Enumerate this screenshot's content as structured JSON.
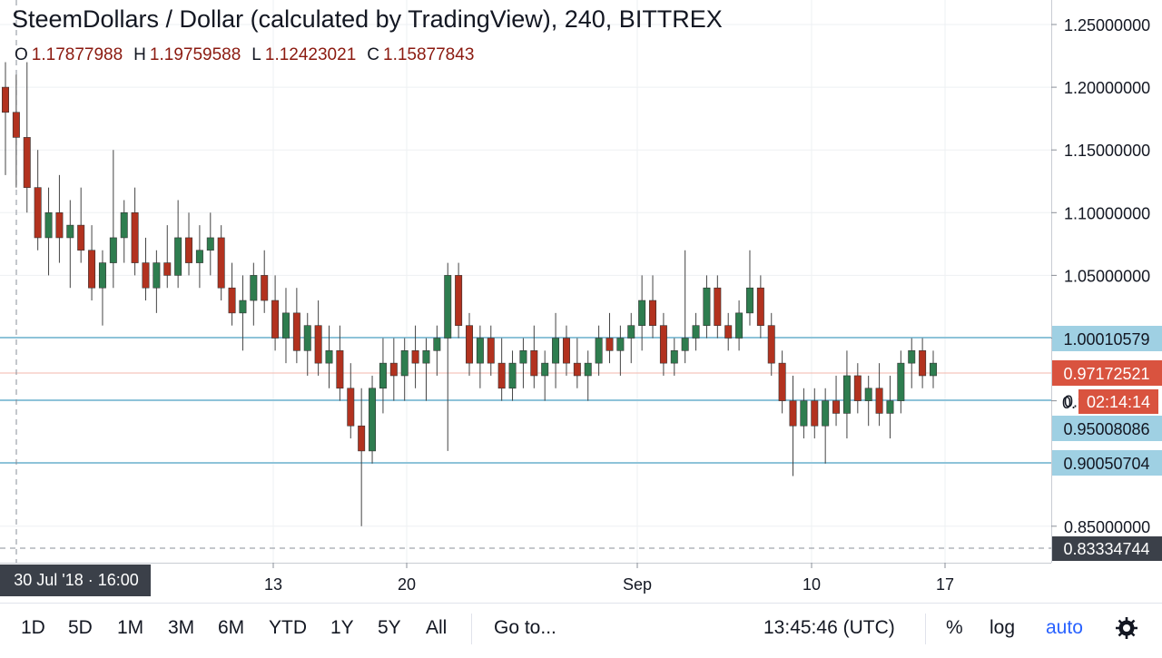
{
  "header": {
    "title": "SteemDollars / Dollar (calculated by TradingView), 240, BITTREX",
    "ohlc": {
      "o_label": "O",
      "o": "1.17877988",
      "h_label": "H",
      "h": "1.19759588",
      "l_label": "L",
      "l": "1.12423021",
      "c_label": "C",
      "c": "1.15877843"
    }
  },
  "colors": {
    "up": "#2e7d4f",
    "down": "#b2321f",
    "wick": "#444444",
    "hline": "#8ec3d9",
    "label_blue": "#9fd0e3",
    "label_red": "#d9533f",
    "label_dark": "#3b4049",
    "grid": "#eef0f3"
  },
  "price_axis": {
    "ticks": [
      "1.25000000",
      "1.20000000",
      "1.15000000",
      "1.10000000",
      "1.05000000",
      "1.00000000",
      "0.95000000",
      "0.85000000"
    ],
    "labels": {
      "hline_1": "1.00010579",
      "last_price": "0.97172521",
      "countdown": "02:14:14",
      "countdown_prefix": "0.",
      "hline_2": "0.95008086",
      "hline_3": "0.90050704",
      "crosshair": "0.83334744"
    }
  },
  "time_axis": {
    "crosshair_label": "30 Jul '18 · 16:00",
    "ticks": [
      "13",
      "20",
      "Sep",
      "10",
      "17"
    ]
  },
  "toolbar": {
    "ranges": [
      "1D",
      "5D",
      "1M",
      "3M",
      "6M",
      "YTD",
      "1Y",
      "5Y",
      "All"
    ],
    "goto": "Go to...",
    "clock": "13:45:46 (UTC)",
    "percent": "%",
    "log": "log",
    "auto": "auto",
    "settings_icon": "gear-icon"
  },
  "chart_data": {
    "type": "candlestick",
    "title": "SteemDollars / Dollar (calculated by TradingView), 240, BITTREX",
    "interval": "240",
    "ylim": [
      0.83,
      1.27
    ],
    "x_ticks": [
      "13",
      "20",
      "Sep",
      "10",
      "17"
    ],
    "horizontal_lines": [
      1.00010579,
      0.95008086,
      0.90050704
    ],
    "last_price": 0.97172521,
    "candles": [
      [
        1.2,
        1.22,
        1.13,
        1.18
      ],
      [
        1.18,
        1.21,
        1.12,
        1.16
      ],
      [
        1.16,
        1.22,
        1.1,
        1.12
      ],
      [
        1.12,
        1.15,
        1.07,
        1.08
      ],
      [
        1.08,
        1.12,
        1.05,
        1.1
      ],
      [
        1.1,
        1.13,
        1.06,
        1.08
      ],
      [
        1.08,
        1.11,
        1.04,
        1.09
      ],
      [
        1.09,
        1.12,
        1.06,
        1.07
      ],
      [
        1.07,
        1.09,
        1.03,
        1.04
      ],
      [
        1.04,
        1.07,
        1.01,
        1.06
      ],
      [
        1.06,
        1.15,
        1.04,
        1.08
      ],
      [
        1.08,
        1.11,
        1.06,
        1.1
      ],
      [
        1.1,
        1.12,
        1.05,
        1.06
      ],
      [
        1.06,
        1.08,
        1.03,
        1.04
      ],
      [
        1.04,
        1.07,
        1.02,
        1.06
      ],
      [
        1.06,
        1.09,
        1.04,
        1.05
      ],
      [
        1.05,
        1.11,
        1.04,
        1.08
      ],
      [
        1.08,
        1.1,
        1.05,
        1.06
      ],
      [
        1.06,
        1.09,
        1.04,
        1.07
      ],
      [
        1.07,
        1.1,
        1.05,
        1.08
      ],
      [
        1.08,
        1.09,
        1.03,
        1.04
      ],
      [
        1.04,
        1.06,
        1.01,
        1.02
      ],
      [
        1.02,
        1.05,
        0.99,
        1.03
      ],
      [
        1.03,
        1.06,
        1.01,
        1.05
      ],
      [
        1.05,
        1.07,
        1.02,
        1.03
      ],
      [
        1.03,
        1.05,
        0.99,
        1.0
      ],
      [
        1.0,
        1.04,
        0.98,
        1.02
      ],
      [
        1.02,
        1.04,
        0.98,
        0.99
      ],
      [
        0.99,
        1.02,
        0.97,
        1.01
      ],
      [
        1.01,
        1.03,
        0.97,
        0.98
      ],
      [
        0.98,
        1.01,
        0.96,
        0.99
      ],
      [
        0.99,
        1.01,
        0.95,
        0.96
      ],
      [
        0.96,
        0.98,
        0.92,
        0.93
      ],
      [
        0.93,
        0.96,
        0.85,
        0.91
      ],
      [
        0.91,
        0.97,
        0.9,
        0.96
      ],
      [
        0.96,
        1.0,
        0.94,
        0.98
      ],
      [
        0.98,
        1.0,
        0.95,
        0.97
      ],
      [
        0.97,
        1.0,
        0.95,
        0.99
      ],
      [
        0.99,
        1.01,
        0.96,
        0.98
      ],
      [
        0.98,
        1.0,
        0.95,
        0.99
      ],
      [
        0.99,
        1.01,
        0.97,
        1.0
      ],
      [
        1.0,
        1.06,
        0.91,
        1.05
      ],
      [
        1.05,
        1.06,
        1.0,
        1.01
      ],
      [
        1.01,
        1.02,
        0.97,
        0.98
      ],
      [
        0.98,
        1.01,
        0.96,
        1.0
      ],
      [
        1.0,
        1.01,
        0.97,
        0.98
      ],
      [
        0.98,
        1.0,
        0.95,
        0.96
      ],
      [
        0.96,
        0.99,
        0.95,
        0.98
      ],
      [
        0.98,
        1.0,
        0.96,
        0.99
      ],
      [
        0.99,
        1.01,
        0.96,
        0.97
      ],
      [
        0.97,
        0.99,
        0.95,
        0.98
      ],
      [
        0.98,
        1.02,
        0.96,
        1.0
      ],
      [
        1.0,
        1.01,
        0.97,
        0.98
      ],
      [
        0.98,
        1.0,
        0.96,
        0.97
      ],
      [
        0.97,
        0.99,
        0.95,
        0.98
      ],
      [
        0.98,
        1.01,
        0.97,
        1.0
      ],
      [
        1.0,
        1.02,
        0.98,
        0.99
      ],
      [
        0.99,
        1.01,
        0.97,
        1.0
      ],
      [
        1.0,
        1.02,
        0.98,
        1.01
      ],
      [
        1.01,
        1.05,
        0.99,
        1.03
      ],
      [
        1.03,
        1.05,
        1.0,
        1.01
      ],
      [
        1.01,
        1.02,
        0.97,
        0.98
      ],
      [
        0.98,
        1.0,
        0.97,
        0.99
      ],
      [
        0.99,
        1.07,
        0.98,
        1.0
      ],
      [
        1.0,
        1.02,
        0.99,
        1.01
      ],
      [
        1.01,
        1.05,
        1.0,
        1.04
      ],
      [
        1.04,
        1.05,
        1.0,
        1.01
      ],
      [
        1.01,
        1.02,
        0.99,
        1.0
      ],
      [
        1.0,
        1.03,
        0.99,
        1.02
      ],
      [
        1.02,
        1.07,
        1.01,
        1.04
      ],
      [
        1.04,
        1.05,
        1.0,
        1.01
      ],
      [
        1.01,
        1.02,
        0.97,
        0.98
      ],
      [
        0.98,
        0.99,
        0.94,
        0.95
      ],
      [
        0.95,
        0.97,
        0.89,
        0.93
      ],
      [
        0.93,
        0.96,
        0.92,
        0.95
      ],
      [
        0.95,
        0.96,
        0.92,
        0.93
      ],
      [
        0.93,
        0.96,
        0.9,
        0.95
      ],
      [
        0.95,
        0.97,
        0.93,
        0.94
      ],
      [
        0.94,
        0.99,
        0.92,
        0.97
      ],
      [
        0.97,
        0.98,
        0.94,
        0.95
      ],
      [
        0.95,
        0.97,
        0.93,
        0.96
      ],
      [
        0.96,
        0.98,
        0.93,
        0.94
      ],
      [
        0.94,
        0.97,
        0.92,
        0.95
      ],
      [
        0.95,
        0.99,
        0.94,
        0.98
      ],
      [
        0.98,
        1.0,
        0.96,
        0.99
      ],
      [
        0.99,
        1.0,
        0.96,
        0.97
      ],
      [
        0.97,
        0.99,
        0.96,
        0.98
      ]
    ]
  }
}
